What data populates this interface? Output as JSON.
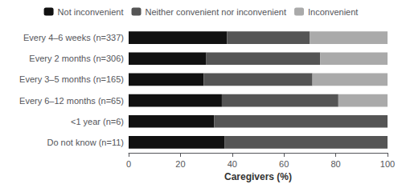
{
  "chart_data": {
    "type": "bar",
    "orientation": "horizontal",
    "stacked": true,
    "categories": [
      "Every 4–6 weeks (n=337)",
      "Every 2 months (n=306)",
      "Every 3–5 months (n=165)",
      "Every 6–12 months (n=65)",
      "<1 year (n=6)",
      "Do not know (n=11)"
    ],
    "series": [
      {
        "name": "Not inconvenient",
        "color": "#111111",
        "values": [
          38,
          30,
          29,
          36,
          33,
          37
        ]
      },
      {
        "name": "Neither convenient nor inconvenient",
        "color": "#555555",
        "values": [
          32,
          44,
          42,
          45,
          67,
          63
        ]
      },
      {
        "name": "Inconvenient",
        "color": "#aaaaaa",
        "values": [
          30,
          26,
          29,
          19,
          0,
          0
        ]
      }
    ],
    "xlabel": "Caregivers (%)",
    "xlim": [
      0,
      100
    ],
    "xticks": [
      0,
      20,
      40,
      60,
      80,
      100
    ],
    "grid": false,
    "legend": "top"
  }
}
